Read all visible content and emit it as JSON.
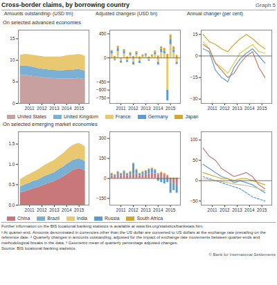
{
  "title": "Cross-border claims, by borrowing country",
  "subtitle": "Graph 5",
  "annotations": [
    "Further information on the BIS locational banking statistics is available at www.bis.org/statistics/bankstats.htm.",
    "¹ At quarter-end. Amounts denominated in currencies other than the US dollar are converted to US dollars at the exchange rate prevailing on the reference date.  ² Quarterly changes in amounts outstanding, adjusted for the impact of exchange rate movements between quarter-ends and methodological breaks in the data.  ³ Geometric mean of quarterly percentage adjusted changes.",
    "Source: BIS locational banking statistics.",
    "© Bank for International Settlements"
  ],
  "chart_data": [
    {
      "type": "area",
      "title": "Amounts outstanding¹ (USD trn)",
      "subtitle": "On selected advanced economies",
      "stacked": true,
      "legend": "bottom",
      "x": [
        2010.25,
        2010.5,
        2010.75,
        2011.0,
        2011.25,
        2011.5,
        2011.75,
        2012.0,
        2012.25,
        2012.5,
        2012.75,
        2013.0,
        2013.25,
        2013.5,
        2013.75,
        2014.0,
        2014.25,
        2014.5,
        2014.75,
        2015.0,
        2015.25,
        2015.5
      ],
      "series": [
        {
          "name": "United States",
          "color": "#c8a0a0",
          "values": [
            6.5,
            6.5,
            6.5,
            6.4,
            6.3,
            6.2,
            6.1,
            6.0,
            5.9,
            5.9,
            5.8,
            5.8,
            5.7,
            5.7,
            5.7,
            5.7,
            5.7,
            5.7,
            5.8,
            5.8,
            5.7,
            5.6
          ]
        },
        {
          "name": "United Kingdom",
          "color": "#7ab0d4",
          "values": [
            2.2,
            2.2,
            2.2,
            2.2,
            2.1,
            2.1,
            2.0,
            2.0,
            2.0,
            1.9,
            1.9,
            1.9,
            1.9,
            1.9,
            1.9,
            2.0,
            2.0,
            2.0,
            2.1,
            2.1,
            2.0,
            1.9
          ]
        },
        {
          "color": "#e8c870",
          "values": [
            2.5,
            2.6,
            2.7,
            2.7,
            2.8,
            2.8,
            2.9,
            2.9,
            2.9,
            3.0,
            3.1,
            3.1,
            3.2,
            3.2,
            3.3,
            3.4,
            3.5,
            3.5,
            3.4,
            3.5,
            3.5,
            3.5
          ]
        }
      ],
      "xlim": [
        2010.1,
        2015.8
      ],
      "xticks": [
        2011,
        2012,
        2013,
        2014,
        2015
      ],
      "ylim": [
        0,
        17
      ],
      "yticks": [
        0,
        5,
        10,
        15
      ]
    },
    {
      "type": "bar",
      "title": "Adjusted changes² (USD bn)",
      "stacked": true,
      "legend": "bottom",
      "x": [
        2010.25,
        2010.5,
        2010.75,
        2011.0,
        2011.25,
        2011.5,
        2011.75,
        2012.0,
        2012.25,
        2012.5,
        2012.75,
        2013.0,
        2013.25,
        2013.5,
        2013.75,
        2014.0,
        2014.25,
        2014.5,
        2014.75,
        2015.0,
        2015.25,
        2015.5
      ],
      "series": [
        {
          "name": "France",
          "color": "#e8c870",
          "values": [
            80,
            -30,
            120,
            -60,
            80,
            -50,
            50,
            -80,
            60,
            -60,
            20,
            40,
            -40,
            20,
            60,
            -80,
            100,
            80,
            -600,
            250,
            100,
            -80
          ]
        },
        {
          "name": "Germany",
          "color": "#5b9bd5",
          "values": [
            40,
            -20,
            60,
            -30,
            50,
            -30,
            30,
            -50,
            40,
            -40,
            10,
            20,
            -20,
            10,
            40,
            -50,
            60,
            40,
            -200,
            100,
            50,
            -40
          ]
        },
        {
          "name": "Japan",
          "color": "#d4a830",
          "values": [
            20,
            30,
            40,
            -10,
            30,
            20,
            20,
            30,
            20,
            20,
            30,
            20,
            20,
            30,
            30,
            40,
            50,
            60,
            70,
            80,
            60,
            50
          ]
        }
      ],
      "xlim": [
        2010.1,
        2015.8
      ],
      "xticks": [
        2011,
        2012,
        2013,
        2014,
        2015
      ],
      "ylim": [
        -850,
        520
      ],
      "yticks": [
        -750,
        -600,
        -450,
        0,
        450
      ]
    },
    {
      "type": "line",
      "title": "Annual change³ (per cent)",
      "x": [
        2010.25,
        2010.75,
        2011.25,
        2011.75,
        2012.25,
        2012.75,
        2013.25,
        2013.75,
        2014.25,
        2014.75,
        2015.25
      ],
      "series": [
        {
          "color": "#e8c840",
          "values": [
            10,
            5,
            -5,
            -8,
            -12,
            -5,
            2,
            5,
            8,
            3,
            2
          ]
        },
        {
          "color": "#5b9bd5",
          "values": [
            5,
            3,
            -10,
            -15,
            -18,
            -8,
            -2,
            2,
            5,
            0,
            -5
          ]
        },
        {
          "color": "#d4a830",
          "values": [
            15,
            10,
            8,
            5,
            3,
            8,
            12,
            15,
            12,
            8,
            5
          ]
        },
        {
          "color": "#c08060",
          "values": [
            8,
            5,
            -5,
            -10,
            -15,
            -12,
            -5,
            0,
            3,
            -8,
            -15
          ]
        }
      ],
      "xlim": [
        2010.1,
        2015.8
      ],
      "xticks": [
        2011,
        2012,
        2013,
        2014,
        2015
      ],
      "ylim": [
        -33,
        18
      ],
      "yticks": [
        -30,
        -15,
        0,
        15
      ]
    },
    {
      "type": "area",
      "subtitle": "On selected emerging market economies",
      "stacked": true,
      "legend": "bottom",
      "x": [
        2010.25,
        2010.5,
        2010.75,
        2011.0,
        2011.25,
        2011.5,
        2011.75,
        2012.0,
        2012.25,
        2012.5,
        2012.75,
        2013.0,
        2013.25,
        2013.5,
        2013.75,
        2014.0,
        2014.25,
        2014.5,
        2014.75,
        2015.0,
        2015.25,
        2015.5
      ],
      "series": [
        {
          "name": "China",
          "color": "#c87878",
          "values": [
            0.3,
            0.32,
            0.35,
            0.37,
            0.4,
            0.42,
            0.44,
            0.47,
            0.5,
            0.53,
            0.55,
            0.58,
            0.62,
            0.66,
            0.7,
            0.75,
            0.8,
            0.85,
            0.88,
            0.9,
            0.88,
            0.85
          ]
        },
        {
          "name": "Brazil",
          "color": "#7ab0d4",
          "values": [
            0.15,
            0.16,
            0.17,
            0.17,
            0.18,
            0.18,
            0.19,
            0.2,
            0.21,
            0.21,
            0.22,
            0.22,
            0.23,
            0.24,
            0.24,
            0.25,
            0.25,
            0.25,
            0.24,
            0.24,
            0.23,
            0.22
          ]
        },
        {
          "name": "India",
          "color": "#e8c870",
          "values": [
            0.18,
            0.19,
            0.2,
            0.21,
            0.22,
            0.23,
            0.25,
            0.26,
            0.27,
            0.28,
            0.29,
            0.3,
            0.31,
            0.32,
            0.33,
            0.35,
            0.36,
            0.37,
            0.38,
            0.38,
            0.37,
            0.36
          ]
        }
      ],
      "xlim": [
        2010.1,
        2015.8
      ],
      "xticks": [
        2011,
        2012,
        2013,
        2014,
        2015
      ],
      "ylim": [
        0,
        1.8
      ],
      "yticks": [
        {
          "value": 0,
          "label": "0.0"
        },
        0.5,
        {
          "value": 1,
          "label": "1.0"
        },
        1.5
      ]
    },
    {
      "type": "bar",
      "stacked": true,
      "legend": "bottom",
      "x": [
        2010.25,
        2010.5,
        2010.75,
        2011.0,
        2011.25,
        2011.5,
        2011.75,
        2012.0,
        2012.25,
        2012.5,
        2012.75,
        2013.0,
        2013.25,
        2013.5,
        2013.75,
        2014.0,
        2014.25,
        2014.5,
        2014.75,
        2015.0,
        2015.25,
        2015.5
      ],
      "series": [
        {
          "name": "China",
          "color": "#c87878",
          "values": [
            20,
            15,
            25,
            20,
            30,
            20,
            25,
            30,
            35,
            20,
            25,
            30,
            35,
            40,
            35,
            30,
            40,
            30,
            20,
            -30,
            -40,
            -50
          ]
        },
        {
          "name": "Russia",
          "color": "#5b9bd5",
          "values": [
            15,
            10,
            20,
            15,
            20,
            15,
            20,
            80,
            25,
            15,
            20,
            25,
            30,
            30,
            25,
            -20,
            -30,
            -40,
            -30,
            -80,
            -50,
            -60
          ]
        },
        {
          "name": "South Africa",
          "color": "#d4a830",
          "values": [
            5,
            5,
            8,
            5,
            8,
            5,
            8,
            5,
            8,
            5,
            8,
            5,
            8,
            8,
            8,
            8,
            8,
            8,
            5,
            5,
            5,
            5
          ]
        }
      ],
      "xlim": [
        2010.1,
        2015.8
      ],
      "xticks": [
        2011,
        2012,
        2013,
        2014,
        2015
      ],
      "ylim": [
        -200,
        350
      ],
      "yticks": [
        -150,
        0,
        150,
        300
      ]
    },
    {
      "type": "line",
      "x": [
        2010.25,
        2010.75,
        2011.25,
        2011.75,
        2012.25,
        2012.75,
        2013.25,
        2013.75,
        2014.25,
        2014.75,
        2015.25
      ],
      "series": [
        {
          "color": "#c87878",
          "values": [
            80,
            60,
            50,
            30,
            20,
            10,
            15,
            20,
            10,
            -10,
            -20
          ]
        },
        {
          "color": "#5b9bd5",
          "values": [
            40,
            30,
            20,
            10,
            5,
            -5,
            0,
            -5,
            -10,
            -20,
            -30
          ]
        },
        {
          "color": "#d4a830",
          "values": [
            20,
            15,
            10,
            5,
            5,
            0,
            5,
            5,
            0,
            -5,
            -10
          ]
        },
        {
          "color": "#5b9bd5",
          "line_style": "dashed",
          "values": [
            10,
            5,
            0,
            -5,
            -10,
            -15,
            -20,
            -30,
            -40,
            -45,
            -50
          ]
        },
        {
          "color": "#d4c090",
          "values": [
            5,
            3,
            0,
            -2,
            -5,
            -8,
            -10,
            -12,
            -15,
            -20,
            -25
          ]
        }
      ],
      "xlim": [
        2010.1,
        2015.8
      ],
      "xticks": [
        2011,
        2012,
        2013,
        2014,
        2015
      ],
      "ylim": [
        -60,
        120
      ],
      "yticks": [
        -50,
        0,
        50,
        100
      ]
    }
  ]
}
